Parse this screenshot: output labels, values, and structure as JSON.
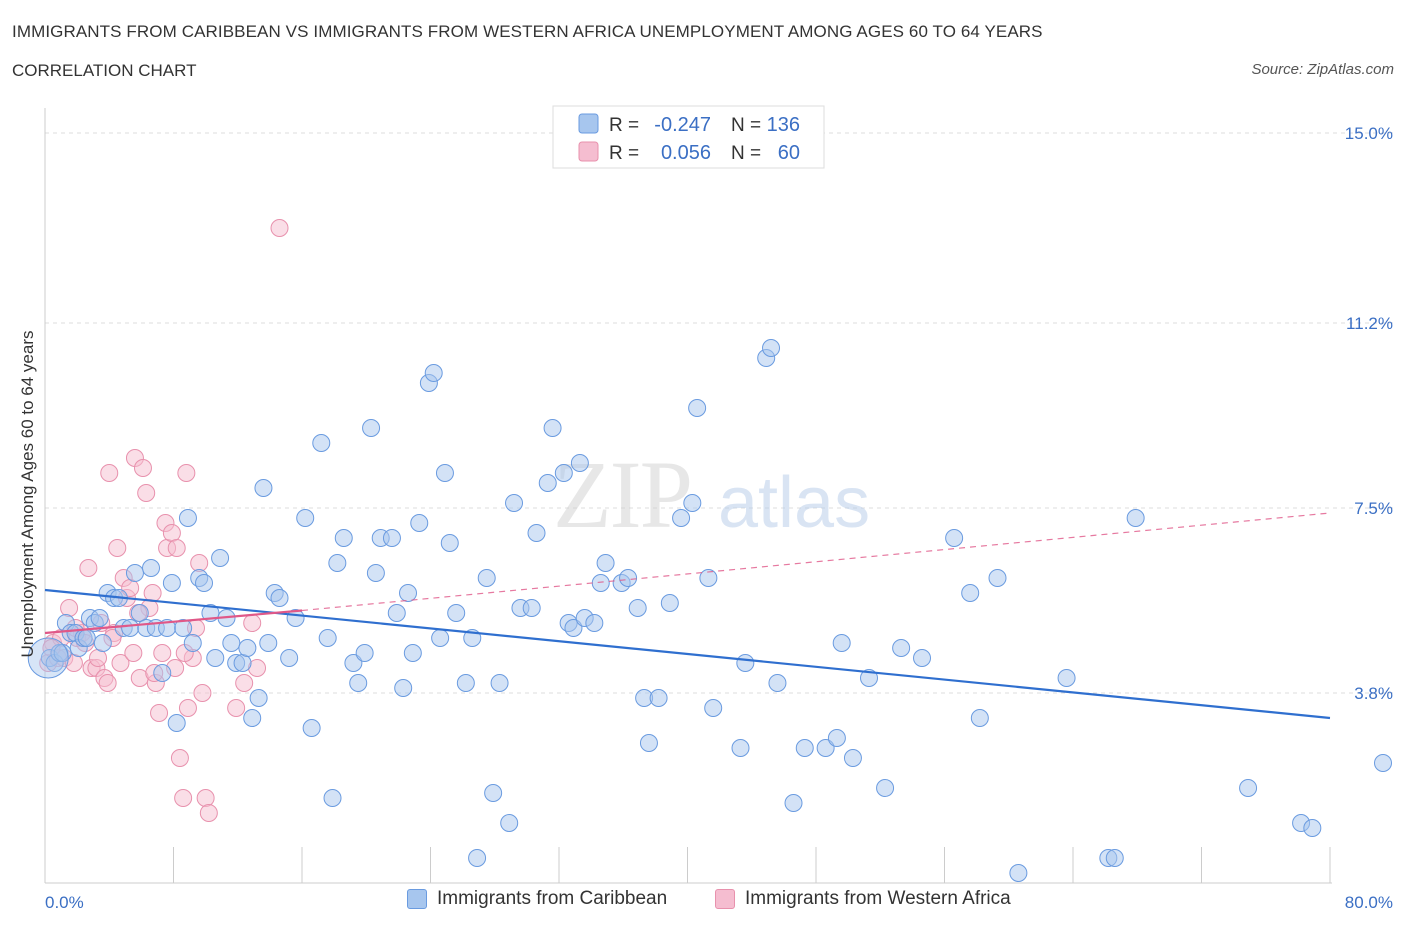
{
  "header": {
    "title": "IMMIGRANTS FROM CARIBBEAN VS IMMIGRANTS FROM WESTERN AFRICA UNEMPLOYMENT AMONG AGES 60 TO 64 YEARS",
    "subtitle": "CORRELATION CHART",
    "source": "Source: ZipAtlas.com"
  },
  "watermark": {
    "zip": "ZIP",
    "atlas": "atlas"
  },
  "colors": {
    "blue_fill": "#a7c6ee",
    "blue_stroke": "#6a9be0",
    "blue_line": "#2f6fcf",
    "pink_fill": "#f5bdd0",
    "pink_stroke": "#e891ad",
    "pink_line": "#e05888",
    "tick_text": "#3b6fc4",
    "grid": "#dddddd"
  },
  "legend": {
    "rows": [
      {
        "r_label": "R =",
        "r_value": "-0.247",
        "n_label": "N =",
        "n_value": "136",
        "series": "blue"
      },
      {
        "r_label": "R =",
        "r_value": "0.056",
        "n_label": "N =",
        "n_value": "60",
        "series": "pink"
      }
    ]
  },
  "bottom_legend": {
    "items": [
      {
        "label": "Immigrants from Caribbean",
        "series": "blue"
      },
      {
        "label": "Immigrants from Western Africa",
        "series": "pink"
      }
    ]
  },
  "chart_data": {
    "type": "scatter",
    "title": "IMMIGRANTS FROM CARIBBEAN VS IMMIGRANTS FROM WESTERN AFRICA UNEMPLOYMENT AMONG AGES 60 TO 64 YEARS",
    "subtitle": "CORRELATION CHART",
    "xlabel": "",
    "ylabel": "Unemployment Among Ages 60 to 64 years",
    "xlim": [
      0,
      80
    ],
    "ylim": [
      0,
      15.3
    ],
    "x_tick_labels": [
      "0.0%",
      "80.0%"
    ],
    "y_ticks": [
      {
        "value": 3.8,
        "label": "3.8%"
      },
      {
        "value": 7.5,
        "label": "7.5%"
      },
      {
        "value": 11.2,
        "label": "11.2%"
      },
      {
        "value": 15.0,
        "label": "15.0%"
      }
    ],
    "grid": true,
    "legend_position": "top-center",
    "series": [
      {
        "name": "Immigrants from Caribbean",
        "color": "#a7c6ee",
        "trend": {
          "x": [
            0,
            80
          ],
          "y": [
            5.86,
            3.3
          ],
          "style": "solid"
        },
        "points": [
          [
            0.3,
            4.5
          ],
          [
            0.6,
            4.4
          ],
          [
            0.9,
            4.6
          ],
          [
            1.1,
            4.6
          ],
          [
            1.3,
            5.2
          ],
          [
            1.6,
            5.0
          ],
          [
            1.9,
            5.0
          ],
          [
            2.1,
            4.7
          ],
          [
            2.4,
            4.9
          ],
          [
            2.6,
            4.9
          ],
          [
            2.8,
            5.3
          ],
          [
            3.1,
            5.2
          ],
          [
            3.4,
            5.3
          ],
          [
            3.6,
            4.8
          ],
          [
            3.9,
            5.8
          ],
          [
            4.3,
            5.7
          ],
          [
            4.6,
            5.7
          ],
          [
            4.9,
            5.1
          ],
          [
            5.3,
            5.1
          ],
          [
            5.6,
            6.2
          ],
          [
            5.9,
            5.4
          ],
          [
            6.3,
            5.1
          ],
          [
            6.6,
            6.3
          ],
          [
            6.9,
            5.1
          ],
          [
            7.3,
            4.2
          ],
          [
            7.6,
            5.1
          ],
          [
            7.9,
            6.0
          ],
          [
            8.2,
            3.2
          ],
          [
            8.6,
            5.1
          ],
          [
            8.9,
            7.3
          ],
          [
            9.2,
            4.8
          ],
          [
            9.6,
            6.1
          ],
          [
            9.9,
            6.0
          ],
          [
            10.3,
            5.4
          ],
          [
            10.6,
            4.5
          ],
          [
            10.9,
            6.5
          ],
          [
            11.3,
            5.3
          ],
          [
            11.6,
            4.8
          ],
          [
            11.9,
            4.4
          ],
          [
            12.3,
            4.4
          ],
          [
            12.6,
            4.7
          ],
          [
            12.9,
            3.3
          ],
          [
            13.3,
            3.7
          ],
          [
            13.6,
            7.9
          ],
          [
            13.9,
            4.8
          ],
          [
            14.3,
            5.8
          ],
          [
            14.6,
            5.7
          ],
          [
            15.2,
            4.5
          ],
          [
            15.6,
            5.3
          ],
          [
            16.2,
            7.3
          ],
          [
            16.6,
            3.1
          ],
          [
            17.2,
            8.8
          ],
          [
            17.6,
            4.9
          ],
          [
            17.9,
            1.7
          ],
          [
            18.2,
            6.4
          ],
          [
            18.6,
            6.9
          ],
          [
            19.2,
            4.4
          ],
          [
            19.5,
            4.0
          ],
          [
            19.9,
            4.6
          ],
          [
            20.3,
            9.1
          ],
          [
            20.6,
            6.2
          ],
          [
            20.9,
            6.9
          ],
          [
            21.6,
            6.9
          ],
          [
            21.9,
            5.4
          ],
          [
            22.3,
            3.9
          ],
          [
            22.6,
            5.8
          ],
          [
            22.9,
            4.6
          ],
          [
            23.3,
            7.2
          ],
          [
            23.9,
            10.0
          ],
          [
            24.2,
            10.2
          ],
          [
            24.6,
            4.9
          ],
          [
            24.9,
            8.2
          ],
          [
            25.2,
            6.8
          ],
          [
            25.6,
            5.4
          ],
          [
            26.2,
            4.0
          ],
          [
            26.6,
            4.9
          ],
          [
            26.9,
            0.5
          ],
          [
            27.5,
            6.1
          ],
          [
            27.9,
            1.8
          ],
          [
            28.3,
            4.0
          ],
          [
            28.9,
            1.2
          ],
          [
            29.2,
            7.6
          ],
          [
            29.6,
            5.5
          ],
          [
            30.3,
            5.5
          ],
          [
            30.6,
            7.0
          ],
          [
            31.3,
            8.0
          ],
          [
            31.6,
            9.1
          ],
          [
            32.3,
            8.2
          ],
          [
            32.6,
            5.2
          ],
          [
            32.9,
            5.1
          ],
          [
            33.3,
            8.4
          ],
          [
            33.6,
            5.3
          ],
          [
            34.2,
            5.2
          ],
          [
            34.6,
            6.0
          ],
          [
            34.9,
            6.4
          ],
          [
            35.9,
            6.0
          ],
          [
            36.3,
            6.1
          ],
          [
            36.9,
            5.5
          ],
          [
            37.3,
            3.7
          ],
          [
            37.6,
            2.8
          ],
          [
            38.2,
            3.7
          ],
          [
            38.9,
            5.6
          ],
          [
            39.6,
            7.3
          ],
          [
            40.3,
            7.6
          ],
          [
            40.6,
            9.5
          ],
          [
            41.3,
            6.1
          ],
          [
            41.6,
            3.5
          ],
          [
            43.3,
            2.7
          ],
          [
            43.6,
            4.4
          ],
          [
            44.9,
            10.5
          ],
          [
            45.2,
            10.7
          ],
          [
            45.6,
            4.0
          ],
          [
            46.6,
            1.6
          ],
          [
            47.3,
            2.7
          ],
          [
            48.6,
            2.7
          ],
          [
            49.3,
            2.9
          ],
          [
            49.6,
            4.8
          ],
          [
            50.3,
            2.5
          ],
          [
            51.3,
            4.1
          ],
          [
            52.3,
            1.9
          ],
          [
            53.3,
            4.7
          ],
          [
            54.6,
            4.5
          ],
          [
            56.6,
            6.9
          ],
          [
            57.6,
            5.8
          ],
          [
            58.2,
            3.3
          ],
          [
            59.3,
            6.1
          ],
          [
            60.6,
            0.2
          ],
          [
            63.6,
            4.1
          ],
          [
            66.2,
            0.5
          ],
          [
            66.6,
            0.5
          ],
          [
            67.9,
            7.3
          ],
          [
            74.9,
            1.9
          ],
          [
            78.2,
            1.2
          ],
          [
            78.9,
            1.1
          ],
          [
            83.3,
            2.4
          ]
        ]
      },
      {
        "name": "Immigrants from Western Africa",
        "color": "#f5bdd0",
        "trend": {
          "x": [
            0,
            16
          ],
          "y": [
            5.0,
            5.45
          ],
          "style": "solid",
          "dashed_extension_to": [
            80,
            7.4
          ]
        },
        "points": [
          [
            0.2,
            4.4
          ],
          [
            0.5,
            4.8
          ],
          [
            0.8,
            4.5
          ],
          [
            1.0,
            4.9
          ],
          [
            1.2,
            4.5
          ],
          [
            1.5,
            5.5
          ],
          [
            1.8,
            4.4
          ],
          [
            2.0,
            4.9
          ],
          [
            2.3,
            5.0
          ],
          [
            2.5,
            4.8
          ],
          [
            2.7,
            6.3
          ],
          [
            2.9,
            4.3
          ],
          [
            3.2,
            4.3
          ],
          [
            3.5,
            5.2
          ],
          [
            3.7,
            4.1
          ],
          [
            3.9,
            4.0
          ],
          [
            4.0,
            8.2
          ],
          [
            4.3,
            5.0
          ],
          [
            4.5,
            6.7
          ],
          [
            4.7,
            4.4
          ],
          [
            4.9,
            6.1
          ],
          [
            5.1,
            5.7
          ],
          [
            5.3,
            5.9
          ],
          [
            5.5,
            4.6
          ],
          [
            5.6,
            8.5
          ],
          [
            5.9,
            4.1
          ],
          [
            6.1,
            8.3
          ],
          [
            6.3,
            7.8
          ],
          [
            6.5,
            5.5
          ],
          [
            6.7,
            5.8
          ],
          [
            6.9,
            4.0
          ],
          [
            7.1,
            3.4
          ],
          [
            7.3,
            4.6
          ],
          [
            7.5,
            7.2
          ],
          [
            7.6,
            6.7
          ],
          [
            7.9,
            7.0
          ],
          [
            8.1,
            4.3
          ],
          [
            8.2,
            6.7
          ],
          [
            8.4,
            2.5
          ],
          [
            8.6,
            1.7
          ],
          [
            8.8,
            8.2
          ],
          [
            8.9,
            3.5
          ],
          [
            9.2,
            4.5
          ],
          [
            9.4,
            5.1
          ],
          [
            9.6,
            6.4
          ],
          [
            9.8,
            3.8
          ],
          [
            10.0,
            1.7
          ],
          [
            10.2,
            1.4
          ],
          [
            11.9,
            3.5
          ],
          [
            12.9,
            5.2
          ],
          [
            13.2,
            4.3
          ],
          [
            14.6,
            13.1
          ],
          [
            0.4,
            4.7
          ],
          [
            1.9,
            5.1
          ],
          [
            3.3,
            4.5
          ],
          [
            5.8,
            5.4
          ],
          [
            6.8,
            4.2
          ],
          [
            8.7,
            4.6
          ],
          [
            12.4,
            4.0
          ],
          [
            4.2,
            4.9
          ]
        ]
      }
    ]
  }
}
